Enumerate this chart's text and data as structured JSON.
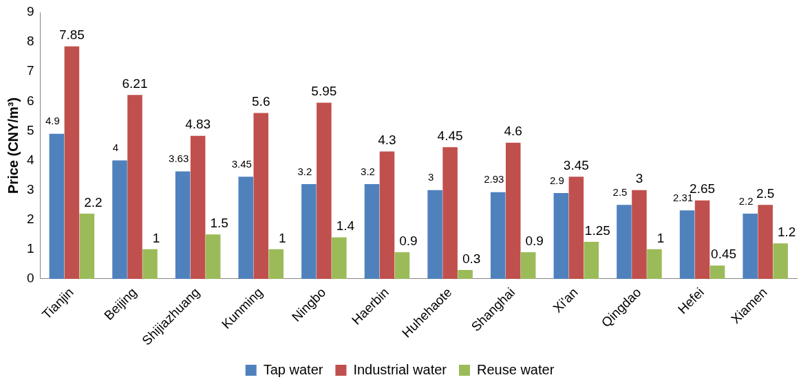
{
  "chart_data": {
    "type": "bar",
    "ylabel": "Price (CNY/m³)",
    "categories": [
      "Tianjin",
      "Beijing",
      "Shijiazhuang",
      "Kunming",
      "Ningbo",
      "Haerbin",
      "Huhehaote",
      "Shanghai",
      "Xi'an",
      "Qingdao",
      "Hefei",
      "Xiamen"
    ],
    "series": [
      {
        "name": "Tap water",
        "color": "#4f81bd",
        "values": [
          4.9,
          4,
          3.63,
          3.45,
          3.2,
          3.2,
          3,
          2.93,
          2.9,
          2.5,
          2.31,
          2.2
        ]
      },
      {
        "name": "Industrial water",
        "color": "#c0504d",
        "values": [
          7.85,
          6.21,
          4.83,
          5.6,
          5.95,
          4.3,
          4.45,
          4.6,
          3.45,
          3,
          2.65,
          2.5
        ]
      },
      {
        "name": "Reuse water",
        "color": "#9bbb59",
        "values": [
          2.2,
          1,
          1.5,
          1,
          1.4,
          0.9,
          0.3,
          0.9,
          1.25,
          1,
          0.45,
          1.2
        ]
      }
    ],
    "ylim": [
      0,
      9
    ],
    "yticks": [
      0,
      1,
      2,
      3,
      4,
      5,
      6,
      7,
      8,
      9
    ],
    "grid": false,
    "legend": "bottom",
    "data_labels": true
  }
}
